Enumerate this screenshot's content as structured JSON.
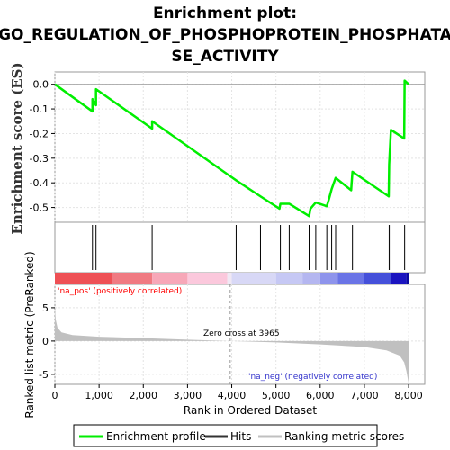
{
  "title": [
    "Enrichment plot:",
    "GO_REGULATION_OF_PHOSPHOPROTEIN_PHOSPHATA",
    "SE_ACTIVITY"
  ],
  "colors": {
    "enrichment_line": "#00ee00",
    "hits": "#000000",
    "ranking_fill": "#c0c0c0",
    "pos_label": "#ff0000",
    "neg_label": "#3333cc",
    "zero_cross_line": "#999999"
  },
  "chart_data": [
    {
      "type": "line",
      "name": "enrichment-profile",
      "ylabel": "Enrichment score (ES)",
      "xlim": [
        0,
        8365
      ],
      "ylim": [
        -0.56,
        0.05
      ],
      "y_ticks": [
        0.0,
        -0.1,
        -0.2,
        -0.3,
        -0.4,
        -0.5
      ],
      "y_tick_labels": [
        "0.0",
        "-0.1",
        "-0.2",
        "-0.3",
        "-0.4",
        "-0.5"
      ],
      "grid": true,
      "series": [
        {
          "name": "Enrichment profile",
          "x": [
            0,
            850,
            850,
            930,
            930,
            2200,
            2200,
            4100,
            4650,
            5080,
            5100,
            5300,
            5750,
            5780,
            5900,
            6150,
            6200,
            6260,
            6350,
            6700,
            6730,
            7550,
            7560,
            7600,
            7900,
            7910,
            8000
          ],
          "y": [
            0.0,
            -0.11,
            -0.06,
            -0.085,
            -0.02,
            -0.18,
            -0.15,
            -0.39,
            -0.455,
            -0.505,
            -0.485,
            -0.485,
            -0.535,
            -0.505,
            -0.48,
            -0.495,
            -0.465,
            -0.425,
            -0.38,
            -0.43,
            -0.355,
            -0.455,
            -0.325,
            -0.185,
            -0.22,
            0.015,
            0.0
          ]
        }
      ]
    },
    {
      "type": "scatter",
      "name": "hits",
      "xlim": [
        0,
        8365
      ],
      "x": [
        850,
        930,
        2200,
        4100,
        4650,
        5100,
        5300,
        5750,
        5900,
        6150,
        6260,
        6350,
        6730,
        7560,
        7600,
        7910
      ]
    },
    {
      "type": "area",
      "name": "ranked-list-metric",
      "xlabel": "Rank in Ordered Dataset",
      "ylabel": "Ranked list metric (PreRanked)",
      "xlim": [
        0,
        8365
      ],
      "ylim": [
        -6.5,
        8.5
      ],
      "x_ticks": [
        0,
        1000,
        2000,
        3000,
        4000,
        5000,
        6000,
        7000,
        8000
      ],
      "x_tick_labels": [
        "0",
        "1,000",
        "2,000",
        "3,000",
        "4,000",
        "5,000",
        "6,000",
        "7,000",
        "8,000"
      ],
      "y_ticks": [
        5,
        0,
        -5
      ],
      "y_tick_labels": [
        "5",
        "0",
        "-5"
      ],
      "x": [
        0,
        20,
        60,
        150,
        400,
        1000,
        2000,
        3000,
        3965,
        5000,
        6000,
        7000,
        7500,
        7800,
        7900,
        7950,
        7990,
        8000
      ],
      "y": [
        5.0,
        3.2,
        2.0,
        1.3,
        0.9,
        0.65,
        0.45,
        0.2,
        0.0,
        -0.2,
        -0.5,
        -0.9,
        -1.4,
        -2.2,
        -3.2,
        -4.5,
        -6.0,
        -6.2
      ],
      "annotations": {
        "zero_cross": "Zero cross at 3965",
        "zero_cross_x": 3965,
        "pos_label": "'na_pos' (positively correlated)",
        "neg_label": "'na_neg' (negatively correlated)"
      }
    }
  ],
  "legend": {
    "items": [
      {
        "label": "Enrichment profile",
        "color": "#00ee00"
      },
      {
        "label": "Hits",
        "color": "#333333"
      },
      {
        "label": "Ranking metric scores",
        "color": "#c0c0c0"
      }
    ]
  }
}
